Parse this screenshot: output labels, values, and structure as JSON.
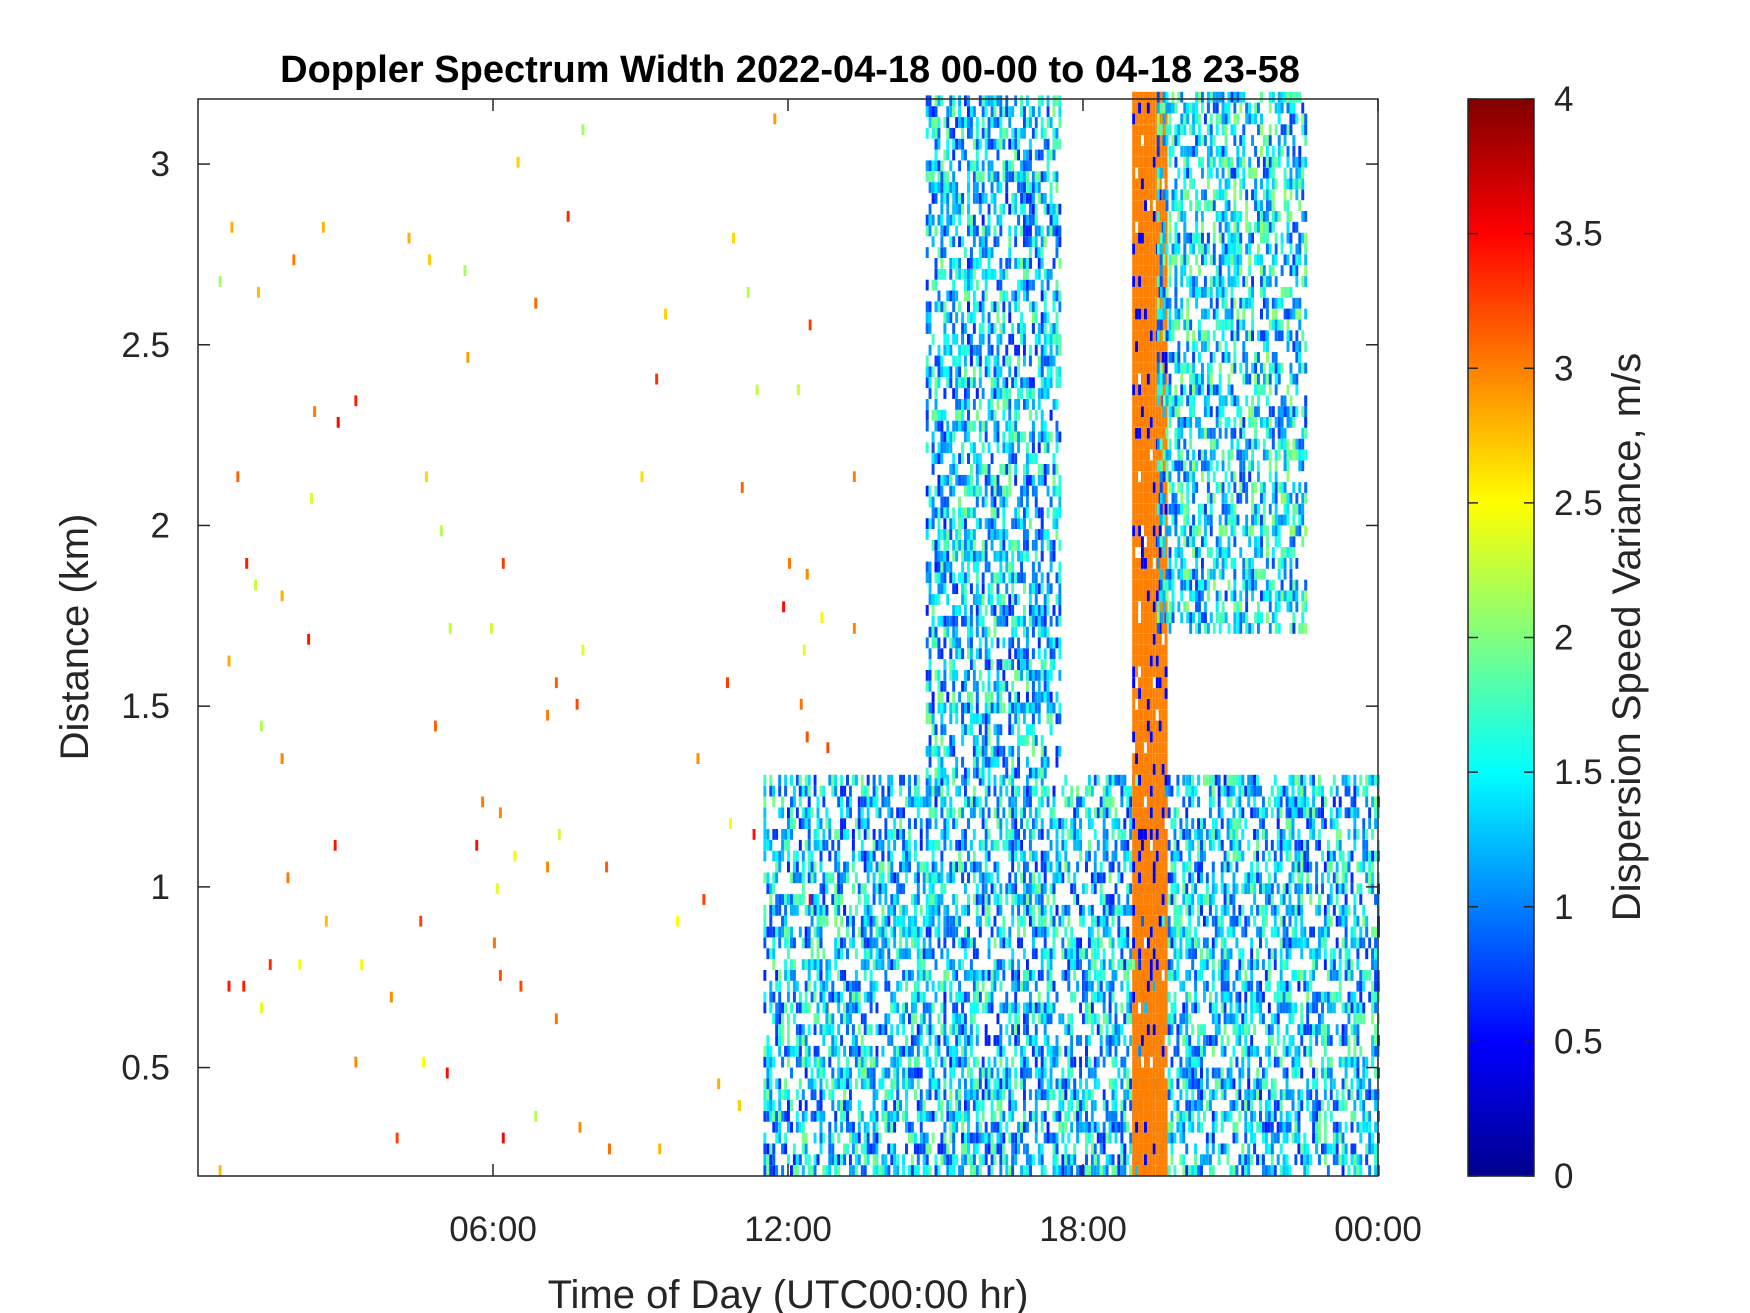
{
  "chart_data": {
    "type": "heatmap",
    "title": "Doppler Spectrum Width 2022-04-18 00-00 to 04-18 23-58",
    "xlabel": "Time of Day (UTC00:00 hr)",
    "ylabel": "Distance (km)",
    "x_unit": "hours",
    "xlim": [
      0,
      24
    ],
    "ylim": [
      0.2,
      3.18
    ],
    "x_ticks": [
      6,
      12,
      18,
      24
    ],
    "x_tick_labels": [
      "06:00",
      "12:00",
      "18:00",
      "00:00"
    ],
    "y_ticks": [
      0.5,
      1,
      1.5,
      2,
      2.5,
      3
    ],
    "y_tick_labels": [
      "0.5",
      "1",
      "1.5",
      "2",
      "2.5",
      "3"
    ],
    "grid": false,
    "colorbar": {
      "label": "Dispersion Speed Variance, m/s",
      "range": [
        0,
        4
      ],
      "ticks": [
        0,
        0.5,
        1,
        1.5,
        2,
        2.5,
        3,
        3.5,
        4
      ],
      "tick_labels": [
        "0",
        "0.5",
        "1",
        "1.5",
        "2",
        "2.5",
        "3",
        "3.5",
        "4"
      ],
      "colormap": "jet"
    },
    "regions": [
      {
        "description": "sparse speckle",
        "x": [
          0,
          13.5
        ],
        "y": [
          0.2,
          3.18
        ],
        "typical_value": 2.8
      },
      {
        "description": "low-level echoes",
        "x": [
          11.5,
          24
        ],
        "y": [
          0.2,
          1.3
        ],
        "typical_value": 1.3
      },
      {
        "description": "upper cloud band",
        "x": [
          14.8,
          17.5
        ],
        "y": [
          1.3,
          3.18
        ],
        "typical_value": 1.3
      },
      {
        "description": "persistent band",
        "x": [
          19.0,
          19.7
        ],
        "y": [
          0.2,
          3.18
        ],
        "typical_value": 3.0
      },
      {
        "description": "upper cloud band",
        "x": [
          19.5,
          22.5
        ],
        "y": [
          1.7,
          3.18
        ],
        "typical_value": 1.4
      }
    ]
  }
}
